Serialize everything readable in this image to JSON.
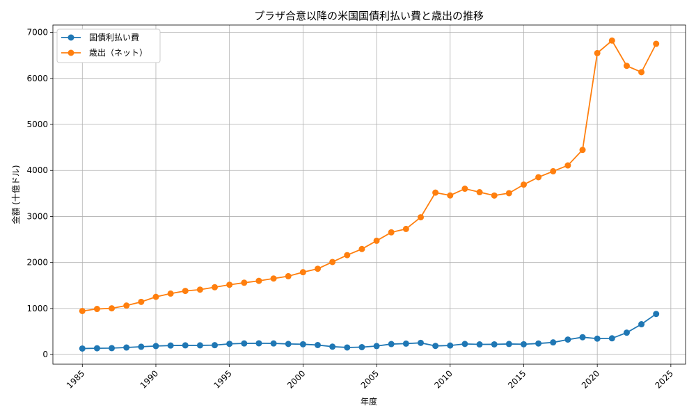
{
  "chart_data": {
    "type": "line",
    "title": "プラザ合意以降の米国国債利払い費と歳出の推移",
    "xlabel": "年度",
    "ylabel": "金額 (十億ドル)",
    "xlim": [
      1983,
      2026
    ],
    "ylim": [
      -210,
      7160
    ],
    "x_ticks": [
      1985,
      1990,
      1995,
      2000,
      2005,
      2010,
      2015,
      2020,
      2025
    ],
    "y_ticks": [
      0,
      1000,
      2000,
      3000,
      4000,
      5000,
      6000,
      7000
    ],
    "x_tick_labels": [
      "1985",
      "1990",
      "1995",
      "2000",
      "2005",
      "2010",
      "2015",
      "2020",
      "2025"
    ],
    "y_tick_labels": [
      "0",
      "1000",
      "2000",
      "3000",
      "4000",
      "5000",
      "6000",
      "7000"
    ],
    "grid": true,
    "legend_position": "top-left",
    "x": [
      1985,
      1986,
      1987,
      1988,
      1989,
      1990,
      1991,
      1992,
      1993,
      1994,
      1995,
      1996,
      1997,
      1998,
      1999,
      2000,
      2001,
      2002,
      2003,
      2004,
      2005,
      2006,
      2007,
      2008,
      2009,
      2010,
      2011,
      2012,
      2013,
      2014,
      2015,
      2016,
      2017,
      2018,
      2019,
      2020,
      2021,
      2022,
      2023,
      2024
    ],
    "series": [
      {
        "name": "国債利払い費",
        "color": "#1f77b4",
        "values": [
          130,
          136,
          139,
          152,
          169,
          184,
          195,
          199,
          199,
          203,
          232,
          241,
          244,
          241,
          230,
          223,
          206,
          171,
          153,
          160,
          184,
          227,
          237,
          253,
          187,
          196,
          230,
          220,
          221,
          229,
          223,
          240,
          263,
          325,
          376,
          345,
          352,
          475,
          658,
          882
        ]
      },
      {
        "name": "歳出（ネット）",
        "color": "#ff7f0e",
        "values": [
          946,
          990,
          1004,
          1064,
          1144,
          1253,
          1324,
          1382,
          1410,
          1462,
          1516,
          1560,
          1601,
          1652,
          1702,
          1789,
          1863,
          2011,
          2160,
          2293,
          2472,
          2655,
          2729,
          2983,
          3518,
          3457,
          3603,
          3527,
          3455,
          3506,
          3692,
          3853,
          3982,
          4109,
          4447,
          6550,
          6822,
          6273,
          6135,
          6752
        ]
      }
    ]
  }
}
